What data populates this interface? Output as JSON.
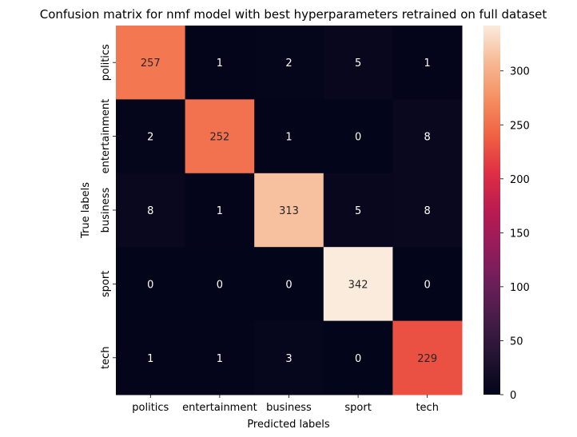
{
  "chart_data": {
    "type": "heatmap",
    "title": "Confusion matrix for nmf model with best hyperparameters retrained on full dataset",
    "xlabel": "Predicted labels",
    "ylabel": "True labels",
    "x_categories": [
      "politics",
      "entertainment",
      "business",
      "sport",
      "tech"
    ],
    "y_categories": [
      "politics",
      "entertainment",
      "business",
      "sport",
      "tech"
    ],
    "values": [
      [
        257,
        1,
        2,
        5,
        1
      ],
      [
        2,
        252,
        1,
        0,
        8
      ],
      [
        8,
        1,
        313,
        5,
        8
      ],
      [
        0,
        0,
        0,
        342,
        0
      ],
      [
        1,
        1,
        3,
        0,
        229
      ]
    ],
    "colorbar": {
      "min": 0,
      "max": 342,
      "ticks": [
        0,
        50,
        100,
        150,
        200,
        250,
        300
      ]
    },
    "colormap": "rocket"
  }
}
